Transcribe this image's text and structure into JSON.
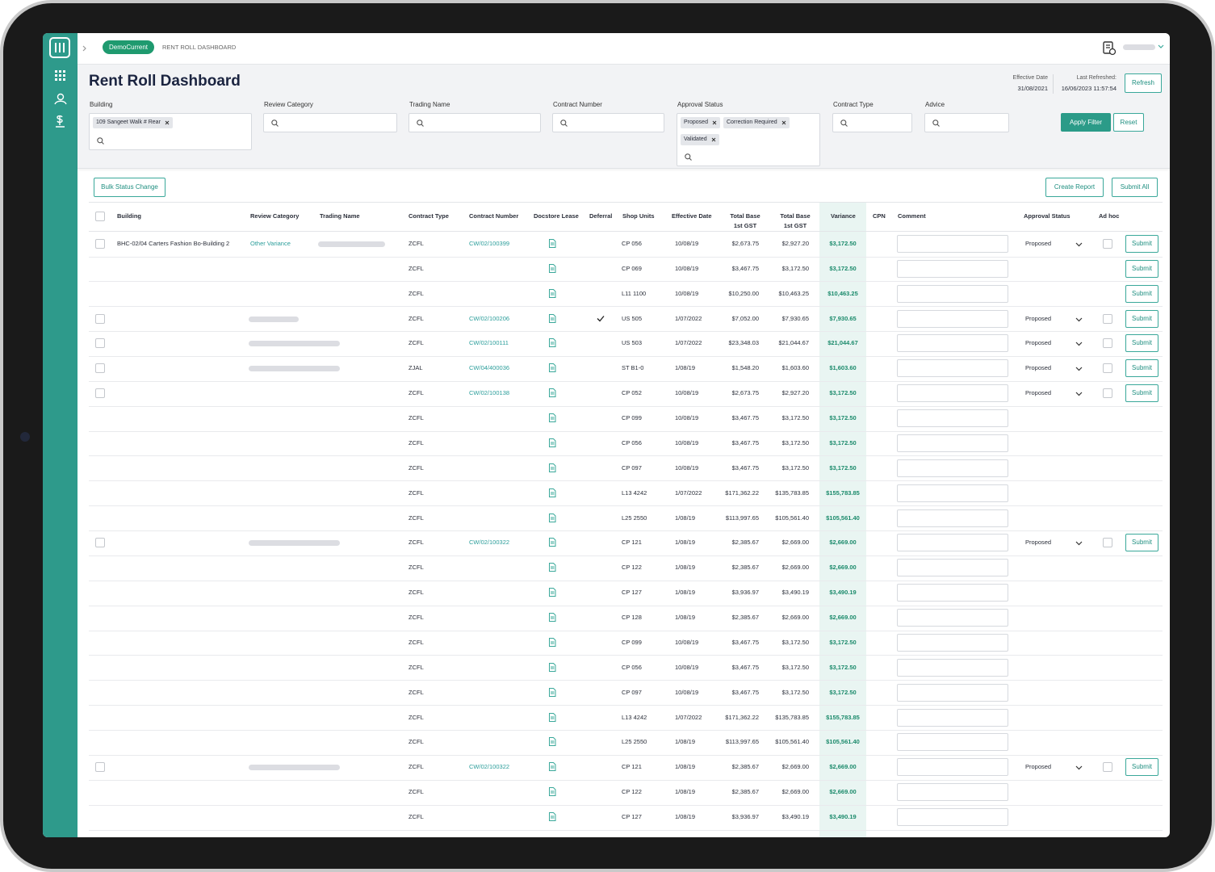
{
  "topbar": {
    "workspace": "DemoCurrent",
    "breadcrumb": "RENT ROLL DASHBOARD"
  },
  "header": {
    "title": "Rent Roll Dashboard",
    "effective_date_label": "Effective Date",
    "effective_date": "31/08/2021",
    "last_refreshed_label": "Last Refreshed:",
    "last_refreshed": "16/06/2023 11:57:54",
    "refresh": "Refresh"
  },
  "filters": [
    {
      "label": "Building",
      "tags": [
        "109 Sangeet Walk # Rear"
      ]
    },
    {
      "label": "Review Category"
    },
    {
      "label": "Trading Name"
    },
    {
      "label": "Contract Number"
    },
    {
      "label": "Approval Status",
      "tags": [
        "Proposed",
        "Correction Required",
        "Validated"
      ]
    },
    {
      "label": "Contract Type"
    },
    {
      "label": "Advice"
    }
  ],
  "filter_actions": {
    "apply": "Apply Filter",
    "reset": "Reset"
  },
  "table_actions": {
    "bulk": "Bulk Status Change",
    "create_report": "Create Report",
    "submit_all": "Submit All"
  },
  "table": {
    "columns": [
      "Building",
      "Review Category",
      "Trading Name",
      "Contract Type",
      "Contract Number",
      "Docstore Lease",
      "Deferral",
      "Shop Units",
      "Effective Date",
      "Total Base 1st GST",
      "Total Base 1st GST",
      "Variance",
      "CPN",
      "Comment",
      "Approval Status",
      "Ad hoc"
    ],
    "rows": [
      {
        "select": true,
        "building": "BHC-02/04 Carters Fashion Bo-Building 2",
        "review_category": "Other  Variance",
        "masked": "trading_name",
        "contract_type": "ZCFL",
        "contract_number": "CW/02/100399",
        "shop_unit": "CP 056",
        "effective_date": "10/08/19",
        "total_base_1": "$2,673.75",
        "total_base_2": "$2,927.20",
        "variance": "$3,172.50",
        "status": "Proposed",
        "action": "Submit"
      },
      {
        "contract_type": "ZCFL",
        "shop_unit": "CP 069",
        "effective_date": "10/08/19",
        "total_base_1": "$3,467.75",
        "total_base_2": "$3,172.50",
        "variance": "$3,172.50",
        "action": "Submit"
      },
      {
        "contract_type": "ZCFL",
        "shop_unit": "L11 1100",
        "effective_date": "10/08/19",
        "total_base_1": "$10,250.00",
        "total_base_2": "$10,463.25",
        "variance": "$10,463.25",
        "action": "Submit"
      },
      {
        "select": true,
        "masked": "review_short",
        "contract_type": "ZCFL",
        "contract_number": "CW/02/100206",
        "deferral": true,
        "shop_unit": "US 505",
        "effective_date": "1/07/2022",
        "total_base_1": "$7,052.00",
        "total_base_2": "$7,930.65",
        "variance": "$7,930.65",
        "status": "Proposed",
        "action": "Submit"
      },
      {
        "select": true,
        "masked": "review_category",
        "contract_type": "ZCFL",
        "contract_number": "CW/02/100111",
        "shop_unit": "US 503",
        "effective_date": "1/07/2022",
        "total_base_1": "$23,348.03",
        "total_base_2": "$21,044.67",
        "variance": "$21,044.67",
        "status": "Proposed",
        "action": "Submit"
      },
      {
        "select": true,
        "masked": "review_category",
        "contract_type": "ZJAL",
        "contract_number": "CW/04/400036",
        "shop_unit": "ST B1-0",
        "effective_date": "1/08/19",
        "total_base_1": "$1,548.20",
        "total_base_2": "$1,603.60",
        "variance": "$1,603.60",
        "status": "Proposed",
        "action": "Submit"
      },
      {
        "select": true,
        "contract_type": "ZCFL",
        "contract_number": "CW/02/100138",
        "shop_unit": "CP 052",
        "effective_date": "10/08/19",
        "total_base_1": "$2,673.75",
        "total_base_2": "$2,927.20",
        "variance": "$3,172.50",
        "status": "Proposed",
        "action": "Submit"
      },
      {
        "contract_type": "ZCFL",
        "shop_unit": "CP 099",
        "effective_date": "10/08/19",
        "total_base_1": "$3,467.75",
        "total_base_2": "$3,172.50",
        "variance": "$3,172.50"
      },
      {
        "contract_type": "ZCFL",
        "shop_unit": "CP 056",
        "effective_date": "10/08/19",
        "total_base_1": "$3,467.75",
        "total_base_2": "$3,172.50",
        "variance": "$3,172.50"
      },
      {
        "contract_type": "ZCFL",
        "shop_unit": "CP 097",
        "effective_date": "10/08/19",
        "total_base_1": "$3,467.75",
        "total_base_2": "$3,172.50",
        "variance": "$3,172.50"
      },
      {
        "contract_type": "ZCFL",
        "shop_unit": "L13 4242",
        "effective_date": "1/07/2022",
        "total_base_1": "$171,362.22",
        "total_base_2": "$135,783.85",
        "variance": "$155,783.85"
      },
      {
        "contract_type": "ZCFL",
        "shop_unit": "L25 2550",
        "effective_date": "1/08/19",
        "total_base_1": "$113,997.65",
        "total_base_2": "$105,561.40",
        "variance": "$105,561.40"
      },
      {
        "select": true,
        "masked": "review_category",
        "contract_type": "ZCFL",
        "contract_number": "CW/02/100322",
        "shop_unit": "CP 121",
        "effective_date": "1/08/19",
        "total_base_1": "$2,385.67",
        "total_base_2": "$2,669.00",
        "variance": "$2,669.00",
        "status": "Proposed",
        "action": "Submit"
      },
      {
        "contract_type": "ZCFL",
        "shop_unit": "CP 122",
        "effective_date": "1/08/19",
        "total_base_1": "$2,385.67",
        "total_base_2": "$2,669.00",
        "variance": "$2,669.00"
      },
      {
        "contract_type": "ZCFL",
        "shop_unit": "CP 127",
        "effective_date": "1/08/19",
        "total_base_1": "$3,936.97",
        "total_base_2": "$3,490.19",
        "variance": "$3,490.19"
      },
      {
        "contract_type": "ZCFL",
        "shop_unit": "CP 128",
        "effective_date": "1/08/19",
        "total_base_1": "$2,385.67",
        "total_base_2": "$2,669.00",
        "variance": "$2,669.00"
      },
      {
        "contract_type": "ZCFL",
        "shop_unit": "CP 099",
        "effective_date": "10/08/19",
        "total_base_1": "$3,467.75",
        "total_base_2": "$3,172.50",
        "variance": "$3,172.50"
      },
      {
        "contract_type": "ZCFL",
        "shop_unit": "CP 056",
        "effective_date": "10/08/19",
        "total_base_1": "$3,467.75",
        "total_base_2": "$3,172.50",
        "variance": "$3,172.50"
      },
      {
        "contract_type": "ZCFL",
        "shop_unit": "CP 097",
        "effective_date": "10/08/19",
        "total_base_1": "$3,467.75",
        "total_base_2": "$3,172.50",
        "variance": "$3,172.50"
      },
      {
        "contract_type": "ZCFL",
        "shop_unit": "L13 4242",
        "effective_date": "1/07/2022",
        "total_base_1": "$171,362.22",
        "total_base_2": "$135,783.85",
        "variance": "$155,783.85"
      },
      {
        "contract_type": "ZCFL",
        "shop_unit": "L25 2550",
        "effective_date": "1/08/19",
        "total_base_1": "$113,997.65",
        "total_base_2": "$105,561.40",
        "variance": "$105,561.40"
      },
      {
        "select": true,
        "masked": "review_category",
        "contract_type": "ZCFL",
        "contract_number": "CW/02/100322",
        "shop_unit": "CP 121",
        "effective_date": "1/08/19",
        "total_base_1": "$2,385.67",
        "total_base_2": "$2,669.00",
        "variance": "$2,669.00",
        "status": "Proposed",
        "action": "Submit"
      },
      {
        "contract_type": "ZCFL",
        "shop_unit": "CP 122",
        "effective_date": "1/08/19",
        "total_base_1": "$2,385.67",
        "total_base_2": "$2,669.00",
        "variance": "$2,669.00"
      },
      {
        "contract_type": "ZCFL",
        "shop_unit": "CP 127",
        "effective_date": "1/08/19",
        "total_base_1": "$3,936.97",
        "total_base_2": "$3,490.19",
        "variance": "$3,490.19"
      }
    ]
  }
}
